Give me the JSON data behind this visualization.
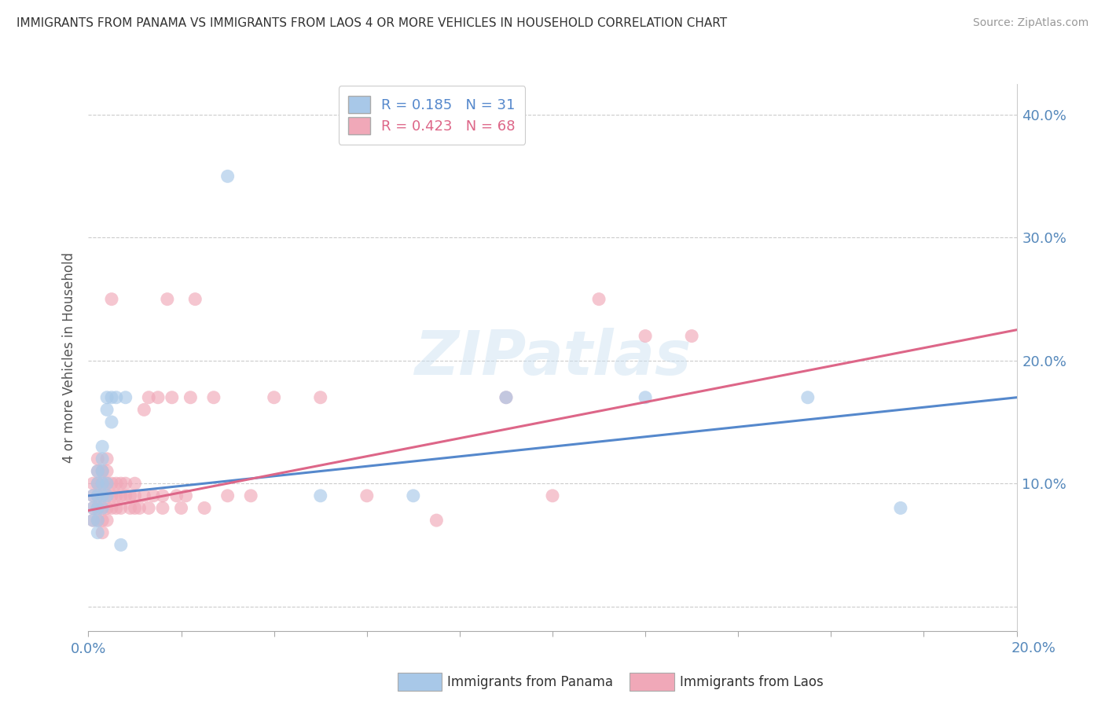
{
  "title": "IMMIGRANTS FROM PANAMA VS IMMIGRANTS FROM LAOS 4 OR MORE VEHICLES IN HOUSEHOLD CORRELATION CHART",
  "source": "Source: ZipAtlas.com",
  "ylabel": "4 or more Vehicles in Household",
  "xlim": [
    0.0,
    0.2
  ],
  "ylim": [
    -0.02,
    0.425
  ],
  "panama_color": "#a8c8e8",
  "laos_color": "#f0a8b8",
  "panama_line_color": "#5588cc",
  "laos_line_color": "#dd6688",
  "watermark": "ZIPatlas",
  "panama_R": 0.185,
  "panama_N": 31,
  "laos_R": 0.423,
  "laos_N": 68,
  "panama_points": [
    [
      0.001,
      0.07
    ],
    [
      0.001,
      0.08
    ],
    [
      0.001,
      0.09
    ],
    [
      0.002,
      0.06
    ],
    [
      0.002,
      0.07
    ],
    [
      0.002,
      0.08
    ],
    [
      0.002,
      0.09
    ],
    [
      0.002,
      0.1
    ],
    [
      0.002,
      0.11
    ],
    [
      0.003,
      0.08
    ],
    [
      0.003,
      0.09
    ],
    [
      0.003,
      0.1
    ],
    [
      0.003,
      0.11
    ],
    [
      0.003,
      0.12
    ],
    [
      0.003,
      0.13
    ],
    [
      0.004,
      0.09
    ],
    [
      0.004,
      0.1
    ],
    [
      0.004,
      0.16
    ],
    [
      0.004,
      0.17
    ],
    [
      0.005,
      0.17
    ],
    [
      0.005,
      0.15
    ],
    [
      0.006,
      0.17
    ],
    [
      0.007,
      0.05
    ],
    [
      0.008,
      0.17
    ],
    [
      0.03,
      0.35
    ],
    [
      0.05,
      0.09
    ],
    [
      0.07,
      0.09
    ],
    [
      0.09,
      0.17
    ],
    [
      0.12,
      0.17
    ],
    [
      0.155,
      0.17
    ],
    [
      0.175,
      0.08
    ]
  ],
  "laos_points": [
    [
      0.001,
      0.08
    ],
    [
      0.001,
      0.09
    ],
    [
      0.001,
      0.1
    ],
    [
      0.001,
      0.07
    ],
    [
      0.002,
      0.07
    ],
    [
      0.002,
      0.08
    ],
    [
      0.002,
      0.09
    ],
    [
      0.002,
      0.1
    ],
    [
      0.002,
      0.11
    ],
    [
      0.002,
      0.12
    ],
    [
      0.003,
      0.07
    ],
    [
      0.003,
      0.08
    ],
    [
      0.003,
      0.09
    ],
    [
      0.003,
      0.1
    ],
    [
      0.003,
      0.11
    ],
    [
      0.003,
      0.06
    ],
    [
      0.004,
      0.08
    ],
    [
      0.004,
      0.09
    ],
    [
      0.004,
      0.1
    ],
    [
      0.004,
      0.11
    ],
    [
      0.004,
      0.12
    ],
    [
      0.004,
      0.07
    ],
    [
      0.005,
      0.08
    ],
    [
      0.005,
      0.09
    ],
    [
      0.005,
      0.1
    ],
    [
      0.005,
      0.25
    ],
    [
      0.006,
      0.08
    ],
    [
      0.006,
      0.09
    ],
    [
      0.006,
      0.1
    ],
    [
      0.007,
      0.09
    ],
    [
      0.007,
      0.08
    ],
    [
      0.007,
      0.1
    ],
    [
      0.008,
      0.09
    ],
    [
      0.008,
      0.1
    ],
    [
      0.009,
      0.08
    ],
    [
      0.009,
      0.09
    ],
    [
      0.01,
      0.08
    ],
    [
      0.01,
      0.09
    ],
    [
      0.01,
      0.1
    ],
    [
      0.011,
      0.08
    ],
    [
      0.012,
      0.09
    ],
    [
      0.012,
      0.16
    ],
    [
      0.013,
      0.08
    ],
    [
      0.013,
      0.17
    ],
    [
      0.014,
      0.09
    ],
    [
      0.015,
      0.17
    ],
    [
      0.016,
      0.08
    ],
    [
      0.016,
      0.09
    ],
    [
      0.017,
      0.25
    ],
    [
      0.018,
      0.17
    ],
    [
      0.019,
      0.09
    ],
    [
      0.02,
      0.08
    ],
    [
      0.021,
      0.09
    ],
    [
      0.022,
      0.17
    ],
    [
      0.023,
      0.25
    ],
    [
      0.025,
      0.08
    ],
    [
      0.027,
      0.17
    ],
    [
      0.03,
      0.09
    ],
    [
      0.035,
      0.09
    ],
    [
      0.04,
      0.17
    ],
    [
      0.05,
      0.17
    ],
    [
      0.06,
      0.09
    ],
    [
      0.075,
      0.07
    ],
    [
      0.09,
      0.17
    ],
    [
      0.1,
      0.09
    ],
    [
      0.11,
      0.25
    ],
    [
      0.12,
      0.22
    ],
    [
      0.13,
      0.22
    ]
  ]
}
